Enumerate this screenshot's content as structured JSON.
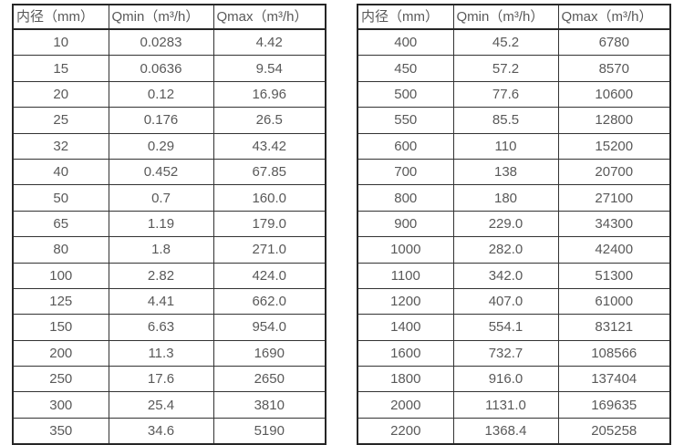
{
  "page": {
    "background_color": "#ffffff",
    "text_color": "#595959",
    "border_color": "#2b2b2b"
  },
  "chart_data": [
    {
      "type": "table",
      "title": "",
      "columns": [
        "内径（mm）",
        "Qmin（m³/h）",
        "Qmax（m³/h）"
      ],
      "rows": [
        [
          "10",
          "0.0283",
          "4.42"
        ],
        [
          "15",
          "0.0636",
          "9.54"
        ],
        [
          "20",
          "0.12",
          "16.96"
        ],
        [
          "25",
          "0.176",
          "26.5"
        ],
        [
          "32",
          "0.29",
          "43.42"
        ],
        [
          "40",
          "0.452",
          "67.85"
        ],
        [
          "50",
          "0.7",
          "160.0"
        ],
        [
          "65",
          "1.19",
          "179.0"
        ],
        [
          "80",
          "1.8",
          "271.0"
        ],
        [
          "100",
          "2.82",
          "424.0"
        ],
        [
          "125",
          "4.41",
          "662.0"
        ],
        [
          "150",
          "6.63",
          "954.0"
        ],
        [
          "200",
          "11.3",
          "1690"
        ],
        [
          "250",
          "17.6",
          "2650"
        ],
        [
          "300",
          "25.4",
          "3810"
        ],
        [
          "350",
          "34.6",
          "5190"
        ]
      ]
    },
    {
      "type": "table",
      "title": "",
      "columns": [
        "内径（mm）",
        "Qmin（m³/h）",
        "Qmax（m³/h）"
      ],
      "rows": [
        [
          "400",
          "45.2",
          "6780"
        ],
        [
          "450",
          "57.2",
          "8570"
        ],
        [
          "500",
          "77.6",
          "10600"
        ],
        [
          "550",
          "85.5",
          "12800"
        ],
        [
          "600",
          "110",
          "15200"
        ],
        [
          "700",
          "138",
          "20700"
        ],
        [
          "800",
          "180",
          "27100"
        ],
        [
          "900",
          "229.0",
          "34300"
        ],
        [
          "1000",
          "282.0",
          "42400"
        ],
        [
          "1100",
          "342.0",
          "51300"
        ],
        [
          "1200",
          "407.0",
          "61000"
        ],
        [
          "1400",
          "554.1",
          "83121"
        ],
        [
          "1600",
          "732.7",
          "108566"
        ],
        [
          "1800",
          "916.0",
          "137404"
        ],
        [
          "2000",
          "1131.0",
          "169635"
        ],
        [
          "2200",
          "1368.4",
          "205258"
        ]
      ]
    }
  ]
}
